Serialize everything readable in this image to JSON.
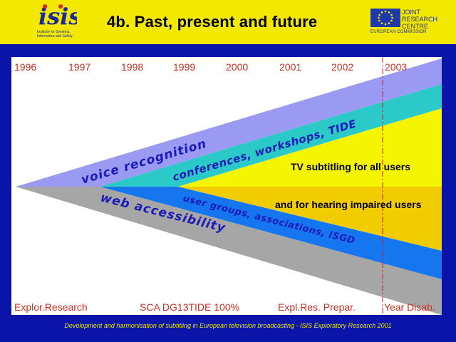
{
  "header": {
    "title": "4b.  Past, present and future",
    "isis_logo_text": "isis",
    "isis_tagline": "Institute for Systems, Informatics and Safety",
    "jrc_lines": [
      "JOINT",
      "RESEARCH",
      "CENTRE"
    ],
    "jrc_commission": "EUROPEAN COMMISSION"
  },
  "timeline": {
    "years": [
      "1996",
      "1997",
      "1998",
      "1999",
      "2000",
      "2001",
      "2002",
      "2003"
    ],
    "phases": [
      "Explor.Research",
      "SCA DG13TIDE 100%",
      "Expl.Res.  Prepar.",
      "Year Disab."
    ]
  },
  "bands": {
    "voice": "voice recognition",
    "conferences": "conferences, workshops, TIDE",
    "tv": "TV subtitling for all users",
    "hearing": "and for hearing impaired users",
    "groups": "user groups, associations, ISGD",
    "web": "web accessibility"
  },
  "colors": {
    "background": "#0a14a8",
    "header": "#f3e800",
    "voice_band": "#9a9af2",
    "conferences_band": "#2cc9c9",
    "tv_band": "#f5f500",
    "hearing_band": "#f0cc00",
    "groups_band": "#1676f0",
    "web_band": "#a6a6a6",
    "label_text": "#1a1ab8",
    "year_text": "#c83224",
    "footer_text": "#f3e800"
  },
  "footer": "Development and harmonisation of subtitling in European television broadcasting - ISIS Exploratory Research 2001"
}
